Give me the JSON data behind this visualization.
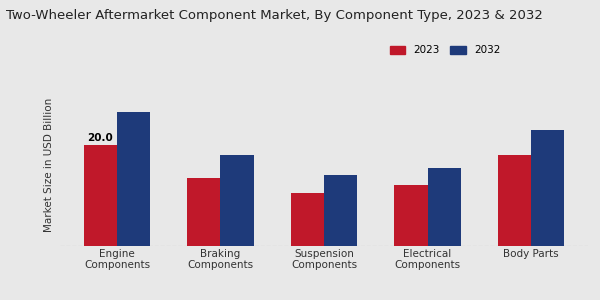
{
  "title": "Two-Wheeler Aftermarket Component Market, By Component Type, 2023 & 2032",
  "ylabel": "Market Size in USD Billion",
  "categories": [
    "Engine\nComponents",
    "Braking\nComponents",
    "Suspension\nComponents",
    "Electrical\nComponents",
    "Body Parts"
  ],
  "values_2023": [
    20.0,
    13.5,
    10.5,
    12.0,
    18.0
  ],
  "values_2032": [
    26.5,
    18.0,
    14.0,
    15.5,
    23.0
  ],
  "color_2023": "#c0182a",
  "color_2032": "#1e3a7a",
  "annotation_text": "20.0",
  "background_color": "#e8e8e8",
  "legend_labels": [
    "2023",
    "2032"
  ],
  "title_fontsize": 9.5,
  "label_fontsize": 7.5,
  "tick_fontsize": 7.5,
  "bar_width": 0.32,
  "ylim": [
    0,
    32
  ],
  "red_bar_color": "#cc0000"
}
